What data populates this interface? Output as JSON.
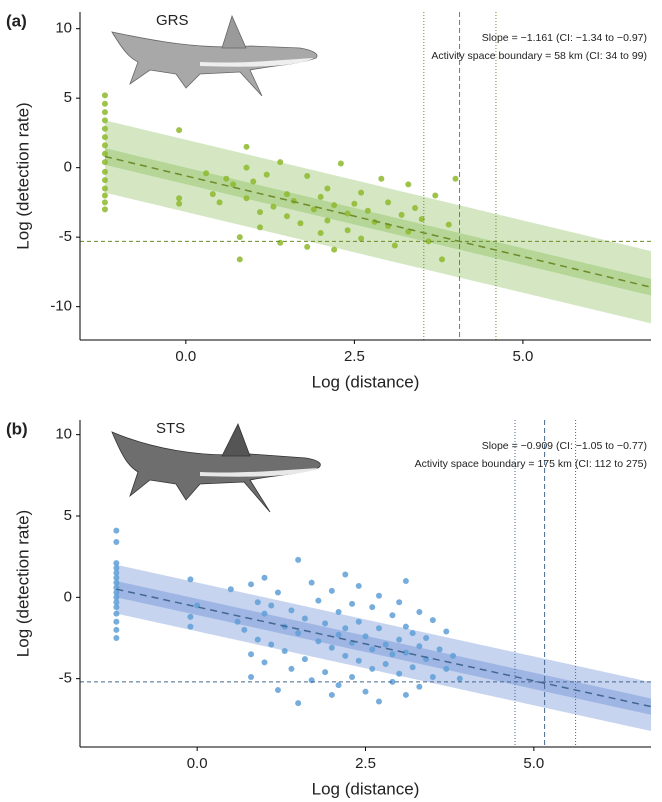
{
  "chart_data": [
    {
      "type": "scatter",
      "panel_label": "(a)",
      "species_label": "GRS",
      "annotations": [
        "Slope = −1.161 (CI: −1.34 to −0.97)",
        "Activity space boundary = 58 km (CI: 34 to 99)"
      ],
      "x_label": "Log (distance)",
      "y_label": "Log (detection rate)",
      "xlim": [
        -1.57,
        6.9
      ],
      "ylim": [
        -12.4,
        11.2
      ],
      "xticks": [
        {
          "value": 0,
          "label": "0.0"
        },
        {
          "value": 2.5,
          "label": "2.5"
        },
        {
          "value": 5,
          "label": "5.0"
        }
      ],
      "yticks": [
        -10,
        -5,
        0,
        5,
        10
      ],
      "color": "#8db82b",
      "band_color": "#a9cf86",
      "line_color": "#6e8a2a",
      "points": {
        "x": [
          -1.2,
          -1.2,
          -1.2,
          -1.2,
          -1.2,
          -1.2,
          -1.2,
          -1.2,
          -1.2,
          -1.2,
          -1.2,
          -1.2,
          -1.2,
          -1.2,
          -1.2,
          -0.1,
          -0.1,
          -0.1,
          0.3,
          0.4,
          0.5,
          0.6,
          0.7,
          0.8,
          0.8,
          0.9,
          0.9,
          0.9,
          1,
          1.1,
          1.1,
          1.2,
          1.3,
          1.4,
          1.4,
          1.5,
          1.5,
          1.6,
          1.7,
          1.8,
          1.8,
          1.9,
          2,
          2,
          2.1,
          2.1,
          2.2,
          2.2,
          2.3,
          2.4,
          2.4,
          2.5,
          2.6,
          2.6,
          2.7,
          2.8,
          2.9,
          3,
          3,
          3.1,
          3.2,
          3.3,
          3.3,
          3.4,
          3.5,
          3.6,
          3.7,
          3.8,
          3.9,
          4
        ],
        "y": [
          5.2,
          4.6,
          4,
          3.4,
          2.8,
          2.2,
          1.6,
          1,
          0.4,
          -0.3,
          -0.9,
          -1.5,
          -2,
          -2.5,
          -3,
          2.7,
          -2.2,
          -2.6,
          -0.4,
          -1.9,
          -2.5,
          -0.8,
          -1.2,
          -6.6,
          -5,
          0,
          1.5,
          -2.2,
          -1,
          -3.2,
          -4.3,
          -0.5,
          -2.8,
          0.4,
          -5.4,
          -1.9,
          -3.5,
          -2.4,
          -4,
          -0.6,
          -5.7,
          -3,
          -2.1,
          -4.7,
          -1.5,
          -3.8,
          -5.9,
          -2.7,
          0.3,
          -3.3,
          -4.5,
          -2.6,
          -1.8,
          -5.1,
          -3.1,
          -3.9,
          -0.8,
          -4.2,
          -2.5,
          -5.6,
          -3.4,
          -1.2,
          -4.6,
          -2.9,
          -3.7,
          -5.3,
          -2,
          -6.6,
          -4.1,
          -0.8
        ]
      },
      "fit": {
        "intercept": -0.59,
        "slope": -1.161,
        "ci_half_width": 0.6,
        "pi_half_width": 2.6
      },
      "threshold_y": -5.3,
      "boundary_x": 4.06,
      "boundary_ci": [
        3.53,
        4.6
      ]
    },
    {
      "type": "scatter",
      "panel_label": "(b)",
      "species_label": "STS",
      "annotations": [
        "Slope = −0.909 (CI: −1.05 to −0.77)",
        "Activity space boundary = 175 km (CI: 112 to 275)"
      ],
      "x_label": "Log (distance)",
      "y_label": "Log (detection rate)",
      "xlim": [
        -1.74,
        6.74
      ],
      "ylim": [
        -9.2,
        10.9
      ],
      "xticks": [
        {
          "value": 0,
          "label": "0.0"
        },
        {
          "value": 2.5,
          "label": "2.5"
        },
        {
          "value": 5,
          "label": "5.0"
        }
      ],
      "yticks": [
        -5,
        0,
        5,
        10
      ],
      "color": "#5f9fd6",
      "band_color": "#8fa9df",
      "line_color": "#44678f",
      "points": {
        "x": [
          -1.2,
          -1.2,
          -1.2,
          -1.2,
          -1.2,
          -1.2,
          -1.2,
          -1.2,
          -1.2,
          -1.2,
          -1.2,
          -1.2,
          -1.2,
          -1.2,
          -1.2,
          -1.2,
          -0.1,
          -0.1,
          -0.1,
          0,
          0.5,
          0.6,
          0.7,
          0.8,
          0.8,
          0.8,
          0.9,
          0.9,
          1,
          1,
          1,
          1.1,
          1.1,
          1.2,
          1.2,
          1.3,
          1.3,
          1.4,
          1.4,
          1.5,
          1.5,
          1.5,
          1.6,
          1.6,
          1.7,
          1.7,
          1.8,
          1.8,
          1.9,
          1.9,
          2,
          2,
          2,
          2.1,
          2.1,
          2.1,
          2.2,
          2.2,
          2.2,
          2.3,
          2.3,
          2.3,
          2.4,
          2.4,
          2.4,
          2.5,
          2.5,
          2.6,
          2.6,
          2.6,
          2.7,
          2.7,
          2.7,
          2.8,
          2.8,
          2.9,
          2.9,
          2.9,
          3,
          3,
          3,
          3.1,
          3.1,
          3.1,
          3.1,
          3.2,
          3.2,
          3.3,
          3.3,
          3.3,
          3.4,
          3.4,
          3.5,
          3.5,
          3.6,
          3.7,
          3.7,
          3.8,
          3.9
        ],
        "y": [
          4.1,
          3.4,
          2.1,
          1.8,
          1.5,
          1.2,
          0.9,
          0.6,
          0.3,
          0,
          -0.3,
          -0.6,
          -1,
          -1.5,
          -2,
          -2.5,
          1.1,
          -1.2,
          -1.8,
          -0.5,
          0.5,
          -1.5,
          -2,
          0.8,
          -3.5,
          -4.9,
          -0.3,
          -2.6,
          1.2,
          -1,
          -4,
          -0.5,
          -2.9,
          0.3,
          -5.7,
          -1.8,
          -3.3,
          -0.8,
          -4.4,
          2.3,
          -2.2,
          -6.5,
          -1.3,
          -3.8,
          0.9,
          -5.1,
          -0.2,
          -2.7,
          -1.6,
          -4.6,
          0.4,
          -3.1,
          -6,
          -0.9,
          -2.3,
          -5.4,
          1.4,
          -1.9,
          -3.6,
          -0.4,
          -2.8,
          -4.9,
          0.7,
          -1.5,
          -3.9,
          -2.4,
          -5.8,
          -0.6,
          -3.2,
          -4.4,
          0.1,
          -1.9,
          -6.4,
          -2.9,
          -4.1,
          -1.1,
          -3.5,
          -5.2,
          -0.3,
          -2.6,
          -4.7,
          1,
          -1.8,
          -3.4,
          -6,
          -2.2,
          -4.3,
          -0.9,
          -3,
          -5.5,
          -2.5,
          -3.8,
          -1.4,
          -4.9,
          -3.2,
          -2.1,
          -4.4,
          -3.6,
          -5
        ]
      },
      "fit": {
        "intercept": -0.59,
        "slope": -0.909,
        "ci_half_width": 0.5,
        "pi_half_width": 1.5
      },
      "threshold_y": -5.2,
      "boundary_x": 5.16,
      "boundary_ci": [
        4.72,
        5.62
      ]
    }
  ]
}
